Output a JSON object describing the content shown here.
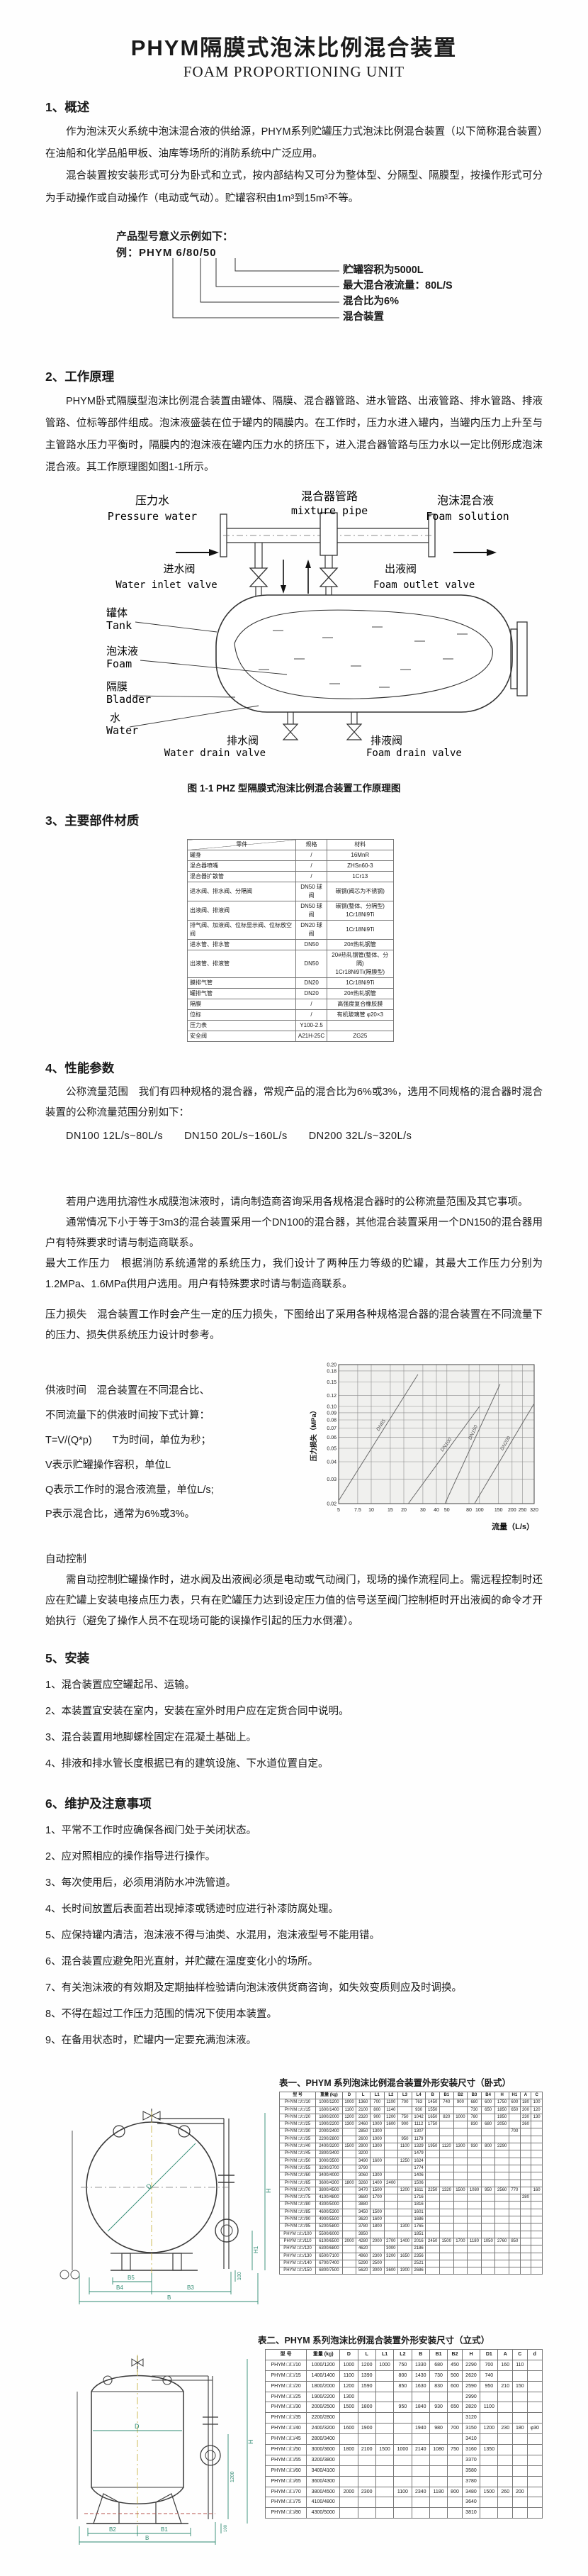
{
  "page": {
    "title": "PHYM隔膜式泡沫比例混合装置",
    "subtitle": "FOAM PROPORTIONING UNIT"
  },
  "section1": {
    "heading": "1、概述",
    "paragraphs": [
      "作为泡沫灭火系统中泡沫混合液的供给源，PHYM系列贮罐压力式泡沫比例混合装置（以下简称混合装置）在油船和化学品船甲板、油库等场所的消防系统中广泛应用。",
      "混合装置按安装形式可分为卧式和立式，按内部结构又可分为整体型、分隔型、隔膜型，按操作形式可分为手动操作或自动操作（电动或气动）。贮罐容积由1m³到15m³不等。"
    ],
    "model_example": {
      "intro": "产品型号意义示例如下：",
      "example": "例：PHYM 6/80/50",
      "annotations": [
        "贮罐容积为5000L",
        "最大混合液流量：80L/S",
        "混合比为6%",
        "混合装置"
      ]
    }
  },
  "section2": {
    "heading": "2、工作原理",
    "paragraph": "PHYM卧式隔膜型泡沫比例混合装置由罐体、隔膜、混合器管路、进水管路、出液管路、排水管路、排液管路、位标等部件组成。泡沫液盛装在位于罐内的隔膜内。在工作时，压力水进入罐内，当罐内压力上升至与主管路水压力平衡时，隔膜内的泡沫液在罐内压力水的挤压下，进入混合器管路与压力水以一定比例形成泡沫混合液。其工作原理图如图1-1所示。",
    "figure": {
      "labels": {
        "pressure_water_cn": "压力水",
        "pressure_water_en": "Pressure water",
        "mixture_pipe_cn": "混合器管路",
        "mixture_pipe_en": "mixture pipe",
        "foam_solution_cn": "泡沫混合液",
        "foam_solution_en": "Foam solution",
        "water_inlet_cn": "进水阀",
        "water_inlet_en": "Water inlet valve",
        "foam_outlet_cn": "出液阀",
        "foam_outlet_en": "Foam outlet valve",
        "tank_cn": "罐体",
        "tank_en": "Tank",
        "foam_cn": "泡沫液",
        "foam_en": "Foam",
        "bladder_cn": "隔膜",
        "bladder_en": "Bladder",
        "water_cn": "水",
        "water_en": "Water",
        "water_drain_cn": "排水阀",
        "water_drain_en": "Water drain valve",
        "foam_drain_cn": "排液阀",
        "foam_drain_en": "Foam drain valve"
      },
      "caption": "图 1-1 PHZ 型隔膜式泡沫比例混合装置工作原理图"
    }
  },
  "section3": {
    "heading": "3、主要部件材质",
    "materials_table": {
      "headers": [
        "零件",
        "规格",
        "材料"
      ],
      "rows": [
        [
          "罐身",
          "/",
          "16MnR"
        ],
        [
          "混合器喷嘴",
          "/",
          "ZHSn60-3"
        ],
        [
          "混合器扩散管",
          "/",
          "1Cr13"
        ],
        [
          "进水阀、排水阀、分隔阀",
          "DN50 球阀",
          "碳钢(阀芯为不锈钢)"
        ],
        [
          "出液阀、排液阀",
          "DN50 球阀",
          "碳钢(整体、分隔型)\n1Cr18Ni9Ti"
        ],
        [
          "排气阀、加液阀、位标显示阀、位标放空阀",
          "DN20 球阀",
          "1Cr18Ni9Ti"
        ],
        [
          "进水管、排水管",
          "DN50",
          "20#热轧钢管"
        ],
        [
          "出液管、排液管",
          "DN50",
          "20#热轧钢管(整体、分隔)\n1Cr18Ni9Ti(隔膜型)"
        ],
        [
          "膜排气管",
          "DN20",
          "1Cr18Ni9Ti"
        ],
        [
          "罐排气管",
          "DN20",
          "20#热轧钢管"
        ],
        [
          "隔膜",
          "/",
          "高强度复合橡胶膜"
        ],
        [
          "位标",
          "/",
          "有机玻璃管 φ20×3"
        ],
        [
          "压力表",
          "Y100-2.5",
          ""
        ],
        [
          "安全阀",
          "A21H-25C",
          "ZG25"
        ]
      ]
    }
  },
  "section4": {
    "heading": "4、性能参数",
    "p_nominal": "公称流量范围　我们有四种规格的混合器，常规产品的混合比为6%或3%，选用不同规格的混合器时混合装置的公称流量范围分别如下：",
    "flow_line": "DN100  12L/s~80L/s　　DN150  20L/s~160L/s　　DN200  32L/s~320L/s",
    "p_afff": "若用户选用抗溶性水成膜泡沫液时，请向制造商咨询采用各规格混合器时的公称流量范围及其它事项。",
    "p_usual": "通常情况下小于等于3m3的混合装置采用一个DN100的混合器，其他混合装置采用一个DN150的混合器用户有特殊要求时请与制造商联系。",
    "p_maxpressure": "最大工作压力　根据消防系统通常的系统压力，我们设计了两种压力等级的贮罐，其最大工作压力分别为1.2MPa、1.6MPa供用户选用。用户有特殊要求时请与制造商联系。",
    "p_pressureloss": "压力损失　混合装置工作时会产生一定的压力损失，下图给出了采用各种规格混合器的混合装置在不同流量下的压力、损失供系统压力设计时参考。",
    "supply_time_lines": [
      "供液时间　混合装置在不同混合比、",
      "不同流量下的供液时间按下式计算：",
      "T=V/(Q*p)　　T为时间，单位为秒；",
      "V表示贮罐操作容积，单位L",
      "Q表示工作时的混合液流量，单位L/s;",
      "P表示混合比，通常为6%或3%。"
    ],
    "auto_heading": "自动控制",
    "auto_para": "需自动控制贮罐操作时，进水阀及出液阀必须是电动或气动阀门，现场的操作流程同上。需远程控制时还应在贮罐上安装电接点压力表，只有在贮罐压力达到设定压力值的信号送至阀门控制柜时开出液阀的命令才开始执行（避免了操作人员不在现场可能的误操作引起的压力水倒灌）。"
  },
  "chart_data": {
    "type": "line",
    "title": "",
    "xlabel": "流量（L/s）",
    "ylabel": "压力损失（MPa）",
    "x_scale": "log",
    "y_scale": "log",
    "xlim": [
      5,
      320
    ],
    "ylim": [
      0.02,
      0.2
    ],
    "grid": true,
    "legend_position": "on-line-labels",
    "x_ticks": [
      "5",
      "7.5",
      "10",
      "15",
      "20",
      "30",
      "40",
      "50",
      "80",
      "100",
      "150",
      "200",
      "250",
      "320"
    ],
    "y_ticks": [
      "0.02",
      "0.03",
      "0.04",
      "0.05",
      "0.06",
      "0.07",
      "0.08",
      "0.09",
      "0.10",
      "0.12",
      "0.15",
      "0.18",
      "0.20"
    ],
    "series": [
      {
        "name": "DN65",
        "points": [
          [
            5,
            0.021
          ],
          [
            27,
            0.17
          ]
        ]
      },
      {
        "name": "DN100",
        "points": [
          [
            22,
            0.02
          ],
          [
            100,
            0.1
          ]
        ]
      },
      {
        "name": "DN150",
        "points": [
          [
            48,
            0.02
          ],
          [
            155,
            0.145
          ]
        ]
      },
      {
        "name": "DN200",
        "points": [
          [
            90,
            0.02
          ],
          [
            320,
            0.105
          ]
        ]
      }
    ]
  },
  "section5": {
    "heading": "5、安装",
    "items": [
      "1、混合装置应空罐起吊、运输。",
      "2、本装置宜安装在室内，安装在室外时用户应在定货合同中说明。",
      "3、混合装置用地脚螺栓固定在混凝土基础上。",
      "4、排液和排水管长度根据已有的建筑设施、下水道位置自定。"
    ]
  },
  "section6": {
    "heading": "6、维护及注意事项",
    "items": [
      "1、平常不工作时应确保各阀门处于关闭状态。",
      "2、应对照相应的操作指导进行操作。",
      "3、每次使用后，必须用消防水冲洗管道。",
      "4、长时间放置后表面若出现掉漆或锈迹时应进行补漆防腐处理。",
      "5、应保持罐内清洁，泡沫液不得与油类、水混用，泡沫液型号不能用错。",
      "6、混合装置应避免阳光直射，并贮藏在温度变化小的场所。",
      "7、有关泡沫液的有效期及定期抽样检验请向泡沫液供货商咨询，如失效变质则应及时调换。",
      "8、不得在超过工作压力范围的情况下使用本装置。",
      "9、在备用状态时，贮罐内一定要充满泡沫液。"
    ]
  },
  "table1": {
    "caption": "表一、PHYM 系列泡沫比例混合装置外形安装尺寸（卧式）",
    "headers": [
      "型  号",
      "重量 (kg)",
      "D",
      "L",
      "L1",
      "L2",
      "L3",
      "L4",
      "B",
      "B1",
      "B2",
      "B3",
      "B4",
      "H",
      "H1",
      "A",
      "C"
    ],
    "rows": [
      [
        "PHYM □/□/10",
        "1000/1200",
        "1000",
        "1360",
        "700",
        "1100",
        "700",
        "763",
        "1450",
        "740",
        "900",
        "680",
        "600",
        "1750",
        "600",
        "180",
        "100"
      ],
      [
        "PHYM □/□/15",
        "1600/1400",
        "1100",
        "2100",
        "800",
        "1140",
        "",
        "930",
        "1550",
        "",
        "",
        "730",
        "650",
        "1850",
        "650",
        "200",
        "120"
      ],
      [
        "PHYM □/□/20",
        "1800/2000",
        "1200",
        "2320",
        "900",
        "1200",
        "750",
        "1042",
        "1650",
        "820",
        "1000",
        "780",
        "",
        "1950",
        "",
        "230",
        "130"
      ],
      [
        "PHYM □/□/25",
        "1900/2200",
        "1300",
        "2460",
        "1000",
        "1600",
        "900",
        "1112",
        "1750",
        "",
        "",
        "830",
        "680",
        "2050",
        "",
        "260",
        ""
      ],
      [
        "PHYM □/□/30",
        "2000/2400",
        "",
        "2850",
        "1300",
        "",
        "",
        "1307",
        "",
        "",
        "",
        "",
        "",
        "",
        "700",
        "",
        ""
      ],
      [
        "PHYM □/□/35",
        "2200/2800",
        "",
        "2600",
        "1000",
        "",
        "950",
        "1179",
        "",
        "",
        "",
        "",
        "",
        "",
        "",
        "",
        ""
      ],
      [
        "PHYM □/□/40",
        "2400/3200",
        "1500",
        "2900",
        "1300",
        "",
        "1100",
        "1329",
        "1950",
        "1120",
        "1300",
        "930",
        "800",
        "2290",
        "",
        "",
        ""
      ],
      [
        "PHYM □/□/45",
        "2800/3400",
        "",
        "3200",
        "",
        "",
        "",
        "1479",
        "",
        "",
        "",
        "",
        "",
        "",
        "",
        "",
        ""
      ],
      [
        "PHYM □/□/50",
        "3000/3500",
        "",
        "3490",
        "1600",
        "",
        "1250",
        "1624",
        "",
        "",
        "",
        "",
        "",
        "",
        "",
        "",
        ""
      ],
      [
        "PHYM □/□/55",
        "3200/3700",
        "",
        "3790",
        "",
        "",
        "",
        "1774",
        "",
        "",
        "",
        "",
        "",
        "",
        "",
        "",
        ""
      ],
      [
        "PHYM □/□/60",
        "3400/4000",
        "",
        "3060",
        "1300",
        "",
        "",
        "1406",
        "",
        "",
        "",
        "",
        "",
        "",
        "",
        "",
        ""
      ],
      [
        "PHYM □/□/65",
        "3600/4300",
        "1800",
        "3260",
        "1400",
        "2400",
        "",
        "1506",
        "",
        "",
        "",
        "",
        "",
        "",
        "",
        "",
        ""
      ],
      [
        "PHYM □/□/70",
        "3800/4500",
        "",
        "3470",
        "1500",
        "",
        "1200",
        "1611",
        "2250",
        "1320",
        "1500",
        "1080",
        "950",
        "2560",
        "770",
        "",
        "160"
      ],
      [
        "PHYM □/□/75",
        "4100/4800",
        "",
        "3680",
        "1700",
        "",
        "",
        "1716",
        "",
        "",
        "",
        "",
        "",
        "",
        "",
        "280",
        ""
      ],
      [
        "PHYM □/□/80",
        "4300/5000",
        "",
        "3880",
        "",
        "",
        "",
        "1816",
        "",
        "",
        "",
        "",
        "",
        "",
        "",
        "",
        ""
      ],
      [
        "PHYM □/□/85",
        "4600/5300",
        "",
        "3450",
        "1500",
        "",
        "",
        "1601",
        "",
        "",
        "",
        "",
        "",
        "",
        "",
        "",
        ""
      ],
      [
        "PHYM □/□/90",
        "4900/5500",
        "",
        "3620",
        "1600",
        "",
        "",
        "1686",
        "",
        "",
        "",
        "",
        "",
        "",
        "",
        "",
        ""
      ],
      [
        "PHYM □/□/95",
        "5200/5800",
        "",
        "3780",
        "1800",
        "",
        "1300",
        "1765",
        "",
        "",
        "",
        "",
        "",
        "",
        "",
        "",
        ""
      ],
      [
        "PHYM □/□/100",
        "5500/6000",
        "",
        "3950",
        "",
        "",
        "",
        "1851",
        "",
        "",
        "",
        "",
        "",
        "",
        "",
        "",
        ""
      ],
      [
        "PHYM □/□/110",
        "6100/6500",
        "2000",
        "4280",
        "2000",
        "2700",
        "1400",
        "2016",
        "2450",
        "1500",
        "1700",
        "1180",
        "1050",
        "2760",
        "850",
        "",
        ""
      ],
      [
        "PHYM □/□/120",
        "6300/6800",
        "",
        "4620",
        "",
        "3000",
        "",
        "2186",
        "",
        "",
        "",
        "",
        "",
        "",
        "",
        "",
        ""
      ],
      [
        "PHYM □/□/130",
        "6500/7100",
        "",
        "4960",
        "2300",
        "3200",
        "1650",
        "2356",
        "",
        "",
        "",
        "",
        "",
        "",
        "",
        "",
        ""
      ],
      [
        "PHYM □/□/140",
        "6700/7400",
        "",
        "5290",
        "2500",
        "",
        "",
        "2521",
        "",
        "",
        "",
        "",
        "",
        "",
        "",
        "",
        ""
      ],
      [
        "PHYM □/□/150",
        "6800/7500",
        "",
        "5620",
        "3000",
        "3600",
        "1900",
        "2686",
        "",
        "",
        "",
        "",
        "",
        "",
        "",
        "",
        ""
      ]
    ]
  },
  "table2": {
    "caption": "表二、PHYM 系列泡沫比例混合装置外形安装尺寸（立式）",
    "headers": [
      "型  号",
      "重量 (kg)",
      "D",
      "L",
      "L1",
      "L2",
      "B",
      "B1",
      "B2",
      "H",
      "D1",
      "A",
      "C",
      "d"
    ],
    "rows": [
      [
        "PHYM □/□/10",
        "1000/1200",
        "1000",
        "1200",
        "1000",
        "750",
        "1330",
        "680",
        "450",
        "2290",
        "700",
        "160",
        "110",
        ""
      ],
      [
        "PHYM □/□/15",
        "1400/1400",
        "1100",
        "1390",
        "",
        "800",
        "1430",
        "730",
        "500",
        "2620",
        "740",
        "",
        "",
        ""
      ],
      [
        "PHYM □/□/20",
        "1800/2000",
        "1200",
        "1590",
        "",
        "850",
        "1630",
        "830",
        "600",
        "2590",
        "950",
        "210",
        "150",
        ""
      ],
      [
        "PHYM □/□/25",
        "1900/2200",
        "1300",
        "",
        "",
        "",
        "",
        "",
        "",
        "2990",
        "",
        "",
        "",
        ""
      ],
      [
        "PHYM □/□/30",
        "2000/2500",
        "1500",
        "1800",
        "",
        "950",
        "1840",
        "930",
        "650",
        "2820",
        "1100",
        "",
        "",
        ""
      ],
      [
        "PHYM □/□/35",
        "2200/2800",
        "",
        "",
        "",
        "",
        "",
        "",
        "",
        "3120",
        "",
        "",
        "",
        ""
      ],
      [
        "PHYM □/□/40",
        "2400/3200",
        "1600",
        "1900",
        "",
        "",
        "1940",
        "980",
        "700",
        "3150",
        "1200",
        "230",
        "180",
        "φ30"
      ],
      [
        "PHYM □/□/45",
        "2800/3400",
        "",
        "",
        "",
        "",
        "",
        "",
        "",
        "3410",
        "",
        "",
        "",
        ""
      ],
      [
        "PHYM □/□/50",
        "3000/3600",
        "1800",
        "2100",
        "1500",
        "1000",
        "2140",
        "1080",
        "750",
        "3160",
        "1350",
        "",
        "",
        ""
      ],
      [
        "PHYM □/□/55",
        "3200/3800",
        "",
        "",
        "",
        "",
        "",
        "",
        "",
        "3370",
        "",
        "",
        "",
        ""
      ],
      [
        "PHYM □/□/60",
        "3400/4100",
        "",
        "",
        "",
        "",
        "",
        "",
        "",
        "3580",
        "",
        "",
        "",
        ""
      ],
      [
        "PHYM □/□/65",
        "3600/4300",
        "",
        "",
        "",
        "",
        "",
        "",
        "",
        "3780",
        "",
        "",
        "",
        ""
      ],
      [
        "PHYM □/□/70",
        "3800/4500",
        "2000",
        "2300",
        "",
        "1100",
        "2340",
        "1180",
        "800",
        "3480",
        "1500",
        "260",
        "200",
        ""
      ],
      [
        "PHYM □/□/75",
        "4100/4800",
        "",
        "",
        "",
        "",
        "",
        "",
        "",
        "3640",
        "",
        "",
        "",
        ""
      ],
      [
        "PHYM □/□/80",
        "4300/5000",
        "",
        "",
        "",
        "",
        "",
        "",
        "",
        "3810",
        "",
        "",
        "",
        ""
      ]
    ]
  },
  "figures": {
    "horizontal": {
      "dims": [
        "D",
        "H",
        "H1",
        "B5",
        "B4",
        "B3",
        "B",
        "100"
      ]
    },
    "vertical": {
      "dims": [
        "D",
        "H",
        "1200",
        "100",
        "B2",
        "B1",
        "B"
      ]
    }
  }
}
